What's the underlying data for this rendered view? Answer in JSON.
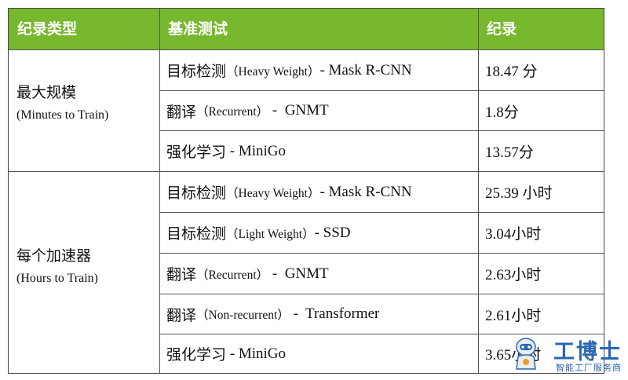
{
  "header": {
    "col1": "纪录类型",
    "col2": "基准测试",
    "col3": "纪录"
  },
  "groups": [
    {
      "category": "最大规模",
      "unit": "(Minutes to Train)",
      "rows": [
        {
          "benchmark": [
            "目标检测",
            "（Heavy Weight）",
            "- Mask R-CNN"
          ],
          "record": "18.47 分"
        },
        {
          "benchmark": [
            "翻译",
            "（Recurrent）",
            " -  GNMT"
          ],
          "record": "1.8分"
        },
        {
          "benchmark": [
            "强化学习",
            " - ",
            " MiniGo"
          ],
          "record": "13.57分"
        }
      ]
    },
    {
      "category": "每个加速器",
      "unit": "(Hours to Train)",
      "rows": [
        {
          "benchmark": [
            "目标检测",
            "（Heavy Weight）",
            "- Mask R-CNN"
          ],
          "record": "25.39 小时"
        },
        {
          "benchmark": [
            "目标检测",
            "（Light Weight）",
            "- SSD"
          ],
          "record": "3.04小时"
        },
        {
          "benchmark": [
            "翻译",
            "（Recurrent）",
            " -  GNMT"
          ],
          "record": "2.63小时"
        },
        {
          "benchmark": [
            "翻译",
            "（Non-recurrent）",
            " -  Transformer"
          ],
          "record": "2.61小时"
        },
        {
          "benchmark": [
            "强化学习",
            " - ",
            " MiniGo"
          ],
          "record": "3.65小时"
        }
      ]
    }
  ],
  "watermark": {
    "brand": "工博士",
    "tagline": "智能工厂服务商"
  }
}
